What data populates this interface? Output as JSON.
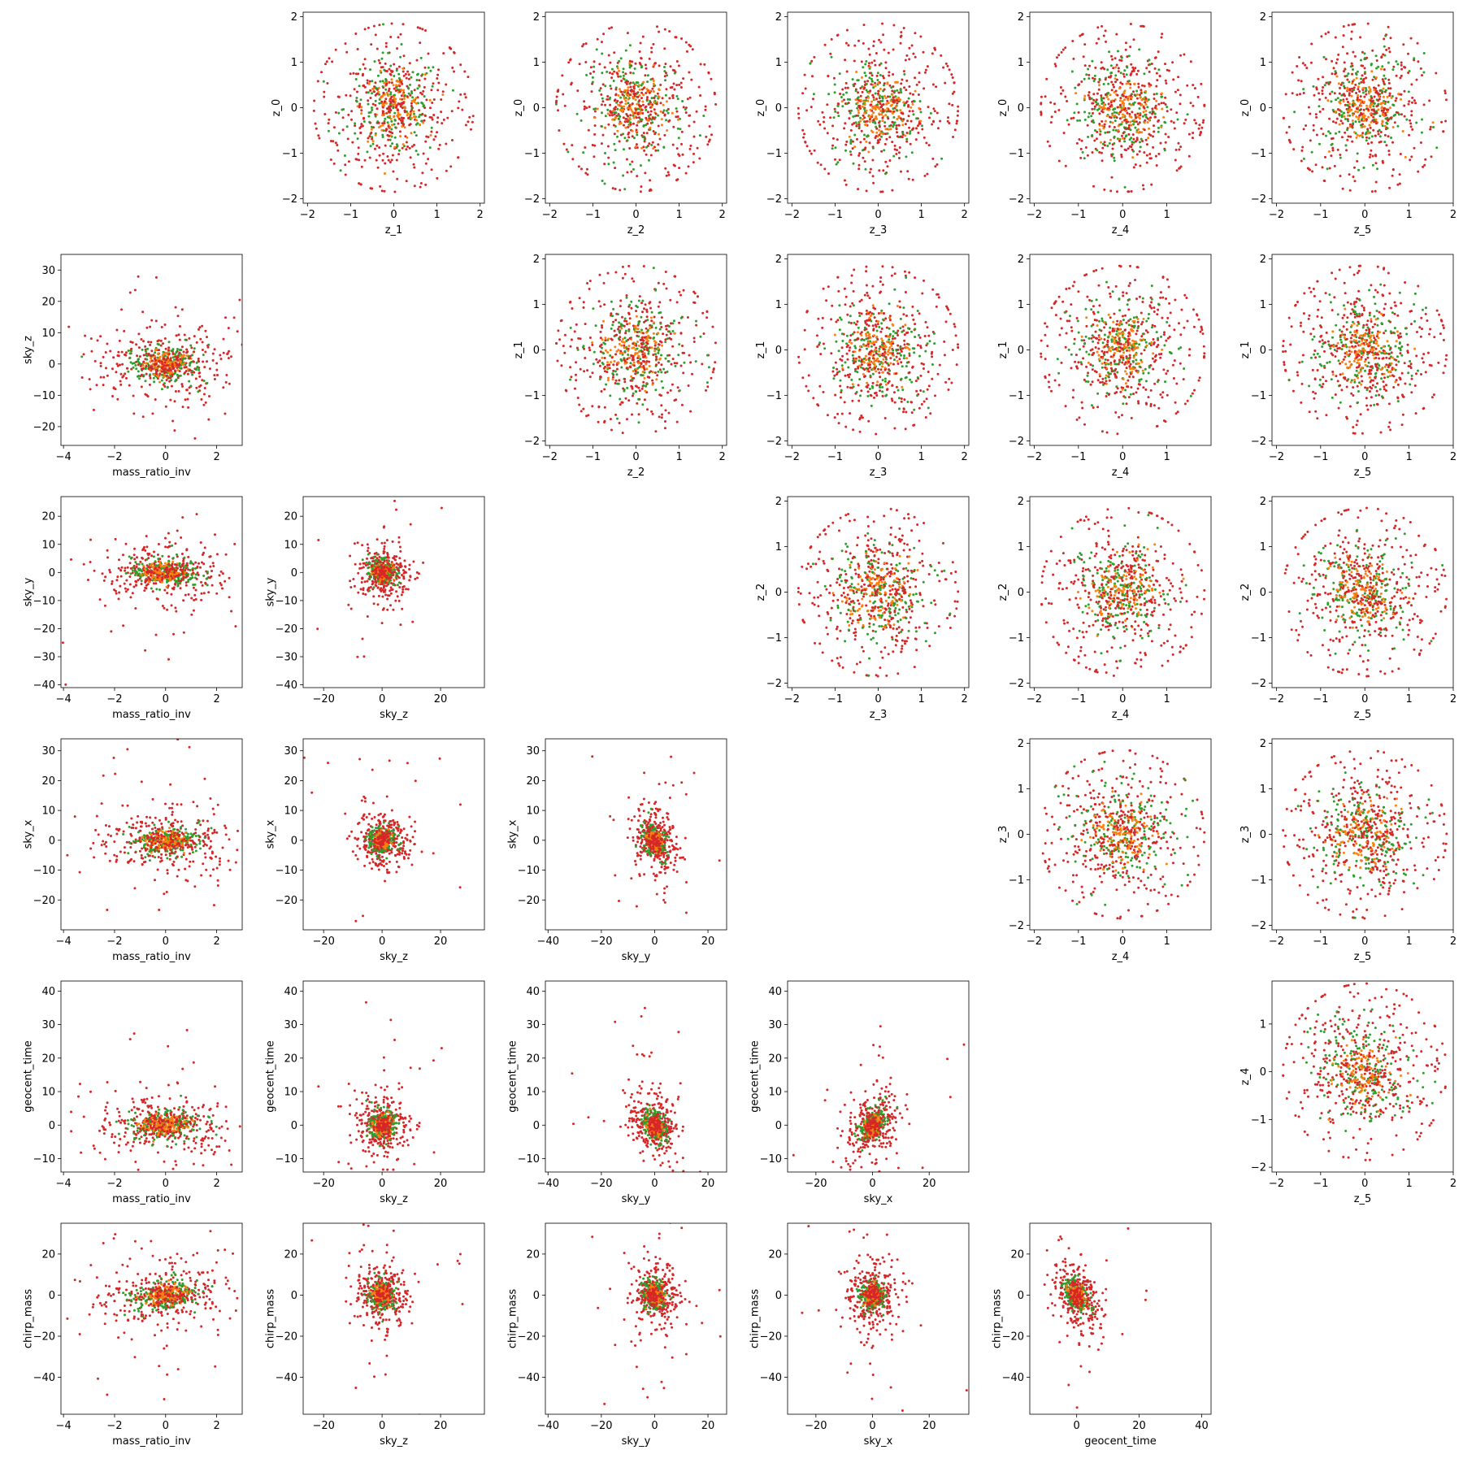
{
  "figure": {
    "background": "#ffffff",
    "layout": "pair-plot grid, 6 rows x 6 columns; diagonal left blank; upper triangle plots latent z variables, lower triangle plots physical parameters"
  },
  "colors": {
    "series_a": "#2ca02c",
    "series_b": "#ff7f0e",
    "series_c": "#d62728"
  },
  "chart_data": [
    {
      "type": "scatter",
      "row": 0,
      "col": 1,
      "xlabel": "z_1",
      "ylabel": "z_0",
      "xlim": [
        -2.1,
        2.1
      ],
      "ylim": [
        -2.1,
        2.1
      ],
      "xticks": [
        -2,
        -1,
        0,
        1,
        2
      ],
      "yticks": [
        -2,
        -1,
        0,
        1,
        2
      ],
      "distribution": "isotropic",
      "spread": [
        0.6,
        0.6
      ],
      "corr": 0,
      "grid": false
    },
    {
      "type": "scatter",
      "row": 0,
      "col": 2,
      "xlabel": "z_2",
      "ylabel": "z_0",
      "xlim": [
        -2.1,
        2.1
      ],
      "ylim": [
        -2.1,
        2.1
      ],
      "xticks": [
        -2,
        -1,
        0,
        1,
        2
      ],
      "yticks": [
        -2,
        -1,
        0,
        1,
        2
      ],
      "distribution": "isotropic",
      "spread": [
        0.6,
        0.6
      ],
      "corr": 0,
      "grid": false
    },
    {
      "type": "scatter",
      "row": 0,
      "col": 3,
      "xlabel": "z_3",
      "ylabel": "z_0",
      "xlim": [
        -2.1,
        2.1
      ],
      "ylim": [
        -2.1,
        2.1
      ],
      "xticks": [
        -2,
        -1,
        0,
        1,
        2
      ],
      "yticks": [
        -2,
        -1,
        0,
        1,
        2
      ],
      "distribution": "isotropic",
      "spread": [
        0.6,
        0.6
      ],
      "corr": 0,
      "grid": false
    },
    {
      "type": "scatter",
      "row": 0,
      "col": 4,
      "xlabel": "z_4",
      "ylabel": "z_0",
      "xlim": [
        -2.1,
        2.0
      ],
      "ylim": [
        -2.1,
        2.1
      ],
      "xticks": [
        -2,
        -1,
        0,
        1
      ],
      "yticks": [
        -2,
        -1,
        0,
        1,
        2
      ],
      "distribution": "isotropic",
      "spread": [
        0.6,
        0.6
      ],
      "corr": 0,
      "grid": false
    },
    {
      "type": "scatter",
      "row": 0,
      "col": 5,
      "xlabel": "z_5",
      "ylabel": "z_0",
      "xlim": [
        -2.1,
        2.0
      ],
      "ylim": [
        -2.1,
        2.1
      ],
      "xticks": [
        -2,
        -1,
        0,
        1,
        2
      ],
      "yticks": [
        -2,
        -1,
        0,
        1,
        2
      ],
      "distribution": "isotropic",
      "spread": [
        0.6,
        0.6
      ],
      "corr": 0,
      "grid": false
    },
    {
      "type": "scatter",
      "row": 1,
      "col": 0,
      "xlabel": "mass_ratio_inv",
      "ylabel": "sky_z",
      "xlim": [
        -4.1,
        3.0
      ],
      "ylim": [
        -26,
        35
      ],
      "xticks": [
        -4,
        -2,
        0,
        2
      ],
      "yticks": [
        -20,
        -10,
        0,
        10,
        20,
        30
      ],
      "distribution": "heavy",
      "spread": [
        0.9,
        4
      ],
      "corr": 0,
      "grid": false
    },
    {
      "type": "scatter",
      "row": 1,
      "col": 2,
      "xlabel": "z_2",
      "ylabel": "z_1",
      "xlim": [
        -2.1,
        2.1
      ],
      "ylim": [
        -2.1,
        2.1
      ],
      "xticks": [
        -2,
        -1,
        0,
        1,
        2
      ],
      "yticks": [
        -2,
        -1,
        0,
        1,
        2
      ],
      "distribution": "isotropic",
      "spread": [
        0.6,
        0.6
      ],
      "corr": 0,
      "grid": false
    },
    {
      "type": "scatter",
      "row": 1,
      "col": 3,
      "xlabel": "z_3",
      "ylabel": "z_1",
      "xlim": [
        -2.1,
        2.1
      ],
      "ylim": [
        -2.1,
        2.1
      ],
      "xticks": [
        -2,
        -1,
        0,
        1,
        2
      ],
      "yticks": [
        -2,
        -1,
        0,
        1,
        2
      ],
      "distribution": "isotropic",
      "spread": [
        0.6,
        0.6
      ],
      "corr": 0,
      "grid": false
    },
    {
      "type": "scatter",
      "row": 1,
      "col": 4,
      "xlabel": "z_4",
      "ylabel": "z_1",
      "xlim": [
        -2.1,
        2.0
      ],
      "ylim": [
        -2.1,
        2.1
      ],
      "xticks": [
        -2,
        -1,
        0,
        1
      ],
      "yticks": [
        -2,
        -1,
        0,
        1,
        2
      ],
      "distribution": "isotropic",
      "spread": [
        0.6,
        0.6
      ],
      "corr": 0,
      "grid": false
    },
    {
      "type": "scatter",
      "row": 1,
      "col": 5,
      "xlabel": "z_5",
      "ylabel": "z_1",
      "xlim": [
        -2.1,
        2.0
      ],
      "ylim": [
        -2.1,
        2.1
      ],
      "xticks": [
        -2,
        -1,
        0,
        1,
        2
      ],
      "yticks": [
        -2,
        -1,
        0,
        1,
        2
      ],
      "distribution": "isotropic",
      "spread": [
        0.6,
        0.6
      ],
      "corr": 0,
      "grid": false
    },
    {
      "type": "scatter",
      "row": 2,
      "col": 0,
      "xlabel": "mass_ratio_inv",
      "ylabel": "sky_y",
      "xlim": [
        -4.1,
        3.0
      ],
      "ylim": [
        -41,
        27
      ],
      "xticks": [
        -4,
        -2,
        0,
        2
      ],
      "yticks": [
        -40,
        -30,
        -20,
        -10,
        0,
        10,
        20
      ],
      "distribution": "heavy",
      "spread": [
        0.9,
        3.5
      ],
      "corr": 0,
      "grid": false
    },
    {
      "type": "scatter",
      "row": 2,
      "col": 1,
      "xlabel": "sky_z",
      "ylabel": "sky_y",
      "xlim": [
        -27,
        35
      ],
      "ylim": [
        -41,
        27
      ],
      "xticks": [
        -20,
        0,
        20
      ],
      "yticks": [
        -40,
        -30,
        -20,
        -10,
        0,
        10,
        20
      ],
      "distribution": "heavy",
      "spread": [
        3,
        3
      ],
      "corr": 0,
      "grid": false
    },
    {
      "type": "scatter",
      "row": 2,
      "col": 3,
      "xlabel": "z_3",
      "ylabel": "z_2",
      "xlim": [
        -2.1,
        2.1
      ],
      "ylim": [
        -2.1,
        2.1
      ],
      "xticks": [
        -2,
        -1,
        0,
        1,
        2
      ],
      "yticks": [
        -2,
        -1,
        0,
        1,
        2
      ],
      "distribution": "isotropic",
      "spread": [
        0.6,
        0.6
      ],
      "corr": 0,
      "grid": false
    },
    {
      "type": "scatter",
      "row": 2,
      "col": 4,
      "xlabel": "z_4",
      "ylabel": "z_2",
      "xlim": [
        -2.1,
        2.0
      ],
      "ylim": [
        -2.1,
        2.1
      ],
      "xticks": [
        -2,
        -1,
        0,
        1
      ],
      "yticks": [
        -2,
        -1,
        0,
        1,
        2
      ],
      "distribution": "isotropic",
      "spread": [
        0.6,
        0.6
      ],
      "corr": 0,
      "grid": false
    },
    {
      "type": "scatter",
      "row": 2,
      "col": 5,
      "xlabel": "z_5",
      "ylabel": "z_2",
      "xlim": [
        -2.1,
        2.0
      ],
      "ylim": [
        -2.1,
        2.1
      ],
      "xticks": [
        -2,
        -1,
        0,
        1,
        2
      ],
      "yticks": [
        -2,
        -1,
        0,
        1,
        2
      ],
      "distribution": "isotropic",
      "spread": [
        0.6,
        0.6
      ],
      "corr": 0,
      "grid": false
    },
    {
      "type": "scatter",
      "row": 3,
      "col": 0,
      "xlabel": "mass_ratio_inv",
      "ylabel": "sky_x",
      "xlim": [
        -4.1,
        3.0
      ],
      "ylim": [
        -30,
        34
      ],
      "xticks": [
        -4,
        -2,
        0,
        2
      ],
      "yticks": [
        -20,
        -10,
        0,
        10,
        20,
        30
      ],
      "distribution": "heavy",
      "spread": [
        0.9,
        3.5
      ],
      "corr": 0,
      "grid": false
    },
    {
      "type": "scatter",
      "row": 3,
      "col": 1,
      "xlabel": "sky_z",
      "ylabel": "sky_x",
      "xlim": [
        -27,
        35
      ],
      "ylim": [
        -30,
        34
      ],
      "xticks": [
        -20,
        0,
        20
      ],
      "yticks": [
        -20,
        -10,
        0,
        10,
        20,
        30
      ],
      "distribution": "heavy",
      "spread": [
        3,
        3
      ],
      "corr": 0,
      "grid": false
    },
    {
      "type": "scatter",
      "row": 3,
      "col": 2,
      "xlabel": "sky_y",
      "ylabel": "sky_x",
      "xlim": [
        -41,
        27
      ],
      "ylim": [
        -30,
        34
      ],
      "xticks": [
        -40,
        -20,
        0,
        20
      ],
      "yticks": [
        -20,
        -10,
        0,
        10,
        20,
        30
      ],
      "distribution": "heavy",
      "spread": [
        3,
        3.5
      ],
      "corr": -0.3,
      "grid": false
    },
    {
      "type": "scatter",
      "row": 3,
      "col": 4,
      "xlabel": "z_4",
      "ylabel": "z_3",
      "xlim": [
        -2.1,
        2.0
      ],
      "ylim": [
        -2.1,
        2.1
      ],
      "xticks": [
        -2,
        -1,
        0,
        1
      ],
      "yticks": [
        -2,
        -1,
        0,
        1,
        2
      ],
      "distribution": "isotropic",
      "spread": [
        0.6,
        0.6
      ],
      "corr": 0,
      "grid": false
    },
    {
      "type": "scatter",
      "row": 3,
      "col": 5,
      "xlabel": "z_5",
      "ylabel": "z_3",
      "xlim": [
        -2.1,
        2.0
      ],
      "ylim": [
        -2.1,
        2.1
      ],
      "xticks": [
        -2,
        -1,
        0,
        1,
        2
      ],
      "yticks": [
        -2,
        -1,
        0,
        1,
        2
      ],
      "distribution": "isotropic",
      "spread": [
        0.6,
        0.6
      ],
      "corr": 0,
      "grid": false
    },
    {
      "type": "scatter",
      "row": 4,
      "col": 0,
      "xlabel": "mass_ratio_inv",
      "ylabel": "geocent_time",
      "xlim": [
        -4.1,
        3.0
      ],
      "ylim": [
        -14,
        43
      ],
      "xticks": [
        -4,
        -2,
        0,
        2
      ],
      "yticks": [
        -10,
        0,
        10,
        20,
        30,
        40
      ],
      "distribution": "heavy",
      "spread": [
        0.9,
        3
      ],
      "corr": 0,
      "grid": false
    },
    {
      "type": "scatter",
      "row": 4,
      "col": 1,
      "xlabel": "sky_z",
      "ylabel": "geocent_time",
      "xlim": [
        -27,
        35
      ],
      "ylim": [
        -14,
        43
      ],
      "xticks": [
        -20,
        0,
        20
      ],
      "yticks": [
        -10,
        0,
        10,
        20,
        30,
        40
      ],
      "distribution": "heavy",
      "spread": [
        3,
        3
      ],
      "corr": 0,
      "grid": false
    },
    {
      "type": "scatter",
      "row": 4,
      "col": 2,
      "xlabel": "sky_y",
      "ylabel": "geocent_time",
      "xlim": [
        -41,
        27
      ],
      "ylim": [
        -14,
        43
      ],
      "xticks": [
        -40,
        -20,
        0,
        20
      ],
      "yticks": [
        -10,
        0,
        10,
        20,
        30,
        40
      ],
      "distribution": "heavy",
      "spread": [
        3,
        3
      ],
      "corr": -0.3,
      "grid": false
    },
    {
      "type": "scatter",
      "row": 4,
      "col": 3,
      "xlabel": "sky_x",
      "ylabel": "geocent_time",
      "xlim": [
        -30,
        34
      ],
      "ylim": [
        -14,
        43
      ],
      "xticks": [
        -20,
        0,
        20
      ],
      "yticks": [
        -10,
        0,
        10,
        20,
        30,
        40
      ],
      "distribution": "heavy",
      "spread": [
        3,
        3
      ],
      "corr": 0.4,
      "grid": false
    },
    {
      "type": "scatter",
      "row": 4,
      "col": 5,
      "xlabel": "z_5",
      "ylabel": "z_4",
      "xlim": [
        -2.1,
        2.0
      ],
      "ylim": [
        -2.1,
        1.9
      ],
      "xticks": [
        -2,
        -1,
        0,
        1,
        2
      ],
      "yticks": [
        -2,
        -1,
        0,
        1
      ],
      "distribution": "isotropic",
      "spread": [
        0.6,
        0.6
      ],
      "corr": 0,
      "grid": false
    },
    {
      "type": "scatter",
      "row": 5,
      "col": 0,
      "xlabel": "mass_ratio_inv",
      "ylabel": "chirp_mass",
      "xlim": [
        -4.1,
        3.0
      ],
      "ylim": [
        -58,
        35
      ],
      "xticks": [
        -4,
        -2,
        0,
        2
      ],
      "yticks": [
        -40,
        -20,
        0,
        20
      ],
      "distribution": "heavy",
      "spread": [
        0.9,
        5
      ],
      "corr": 0.2,
      "grid": false
    },
    {
      "type": "scatter",
      "row": 5,
      "col": 1,
      "xlabel": "sky_z",
      "ylabel": "chirp_mass",
      "xlim": [
        -27,
        35
      ],
      "ylim": [
        -58,
        35
      ],
      "xticks": [
        -20,
        0,
        20
      ],
      "yticks": [
        -40,
        -20,
        0,
        20
      ],
      "distribution": "heavy",
      "spread": [
        3,
        5
      ],
      "corr": 0,
      "grid": false
    },
    {
      "type": "scatter",
      "row": 5,
      "col": 2,
      "xlabel": "sky_y",
      "ylabel": "chirp_mass",
      "xlim": [
        -41,
        27
      ],
      "ylim": [
        -58,
        35
      ],
      "xticks": [
        -40,
        -20,
        0,
        20
      ],
      "yticks": [
        -40,
        -20,
        0,
        20
      ],
      "distribution": "heavy",
      "spread": [
        3,
        5
      ],
      "corr": 0,
      "grid": false
    },
    {
      "type": "scatter",
      "row": 5,
      "col": 3,
      "xlabel": "sky_x",
      "ylabel": "chirp_mass",
      "xlim": [
        -30,
        34
      ],
      "ylim": [
        -58,
        35
      ],
      "xticks": [
        -20,
        0,
        20
      ],
      "yticks": [
        -40,
        -20,
        0,
        20
      ],
      "distribution": "heavy",
      "spread": [
        3,
        5
      ],
      "corr": 0,
      "grid": false
    },
    {
      "type": "scatter",
      "row": 5,
      "col": 4,
      "xlabel": "geocent_time",
      "ylabel": "chirp_mass",
      "xlim": [
        -15,
        43
      ],
      "ylim": [
        -58,
        35
      ],
      "xticks": [
        0,
        20,
        40
      ],
      "yticks": [
        -40,
        -20,
        0,
        20
      ],
      "distribution": "heavy",
      "spread": [
        2.5,
        5
      ],
      "corr": -0.4,
      "grid": false
    }
  ]
}
